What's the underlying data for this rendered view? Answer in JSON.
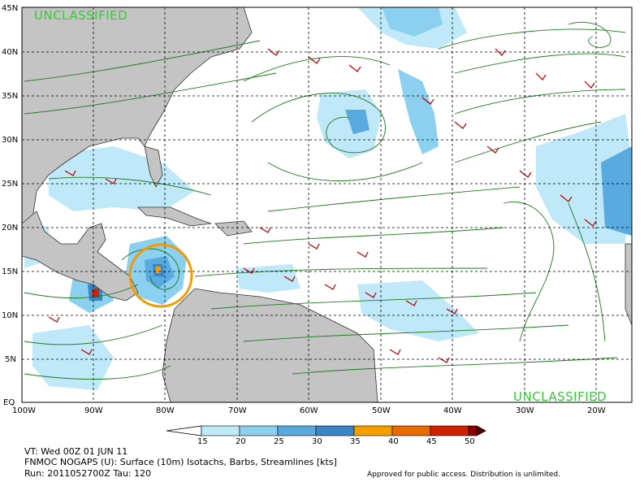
{
  "classification_top": "UNCLASSIFIED",
  "classification_bottom": "UNCLASSIFIED",
  "lat_labels": [
    "45N",
    "40N",
    "35N",
    "30N",
    "25N",
    "20N",
    "15N",
    "10N",
    "5N",
    "EQ"
  ],
  "lon_labels": [
    "100W",
    "90W",
    "80W",
    "70W",
    "60W",
    "50W",
    "40W",
    "30W",
    "20W"
  ],
  "colorbar": {
    "ticks": [
      "15",
      "20",
      "25",
      "30",
      "35",
      "40",
      "45",
      "50"
    ],
    "colors": [
      "#bfe8f8",
      "#8cd0f0",
      "#58aadf",
      "#3a85c8",
      "#f5a000",
      "#e86a00",
      "#cc2200",
      "#8c0000",
      "#5a0000"
    ]
  },
  "footer": {
    "vt": "VT: Wed 00Z 01 JUN 11",
    "product": "FNMOC NOGAPS (U): Surface (10m) Isotachs, Barbs, Streamlines [kts]",
    "run": "Run: 2011052700Z Tau: 120",
    "approval": "Approved for public access. Distribution is unlimited."
  },
  "annotation": {
    "type": "circle",
    "color": "#f59a00",
    "label": "storm-circle"
  }
}
